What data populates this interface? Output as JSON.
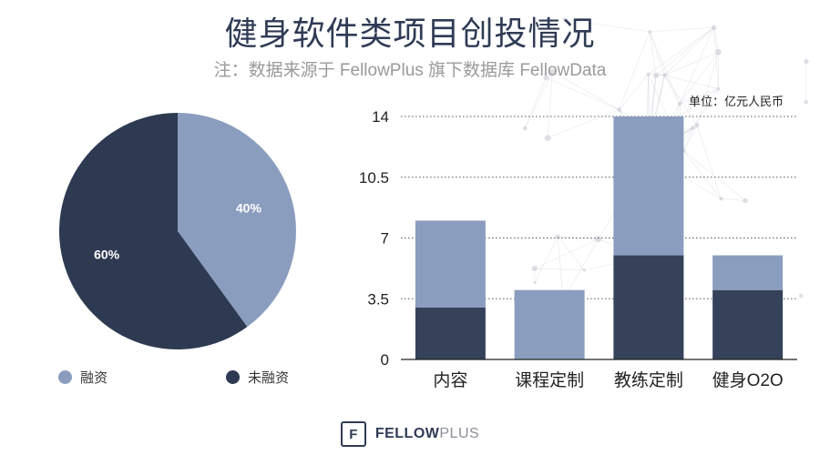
{
  "title": "健身软件类项目创投情况",
  "subtitle": "注：数据来源于 FellowPlus 旗下数据库 FellowData",
  "unit_label": "单位：亿元人民币",
  "colors": {
    "funded": "#8b9dbe",
    "unfunded": "#2e3a52",
    "bar_bottom": "#36425a",
    "bar_top": "#8b9dbe",
    "background_network": "#c9cbd6"
  },
  "chart_data": [
    {
      "type": "pie",
      "slices": [
        {
          "label": "融资",
          "value": 40,
          "display": "40%"
        },
        {
          "label": "未融资",
          "value": 60,
          "display": "60%"
        }
      ],
      "legend_position": "bottom"
    },
    {
      "type": "bar",
      "stacked": true,
      "categories": [
        "内容",
        "课程定制",
        "教练定制",
        "健身O2O"
      ],
      "series": [
        {
          "values": [
            3,
            0,
            6,
            4
          ]
        },
        {
          "values": [
            5,
            4,
            8,
            2
          ]
        }
      ],
      "ylim": [
        0,
        14
      ],
      "yticks": [
        "0",
        "3.5",
        "7",
        "10.5",
        "14"
      ],
      "grid": true
    }
  ],
  "legend": {
    "funded_label": "融资",
    "unfunded_label": "未融资"
  },
  "footer": {
    "logo_glyph": "F",
    "brand_bold": "FELLOW",
    "brand_light": "PLUS"
  }
}
